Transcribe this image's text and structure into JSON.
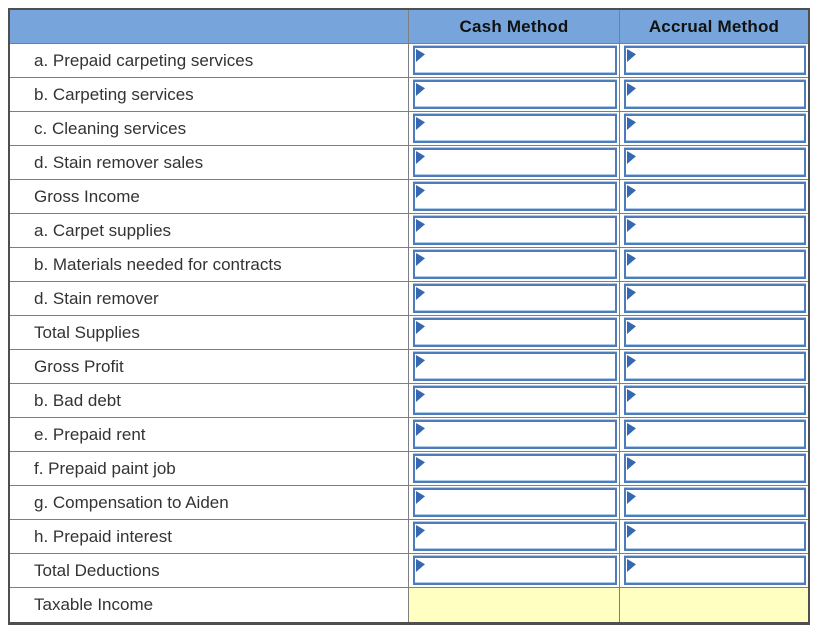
{
  "theme": {
    "header-bg": "#77A5DB",
    "header-text": "#111111",
    "label-text": "#333333",
    "grid-line": "#7f7f7f",
    "outer-border": "#4f4f4f",
    "input-border": "#4E7CBB",
    "input-glow": "#AECBEA",
    "flag-color": "#3568B1",
    "highlight-bg": "#FFFFC2"
  },
  "table": {
    "header": {
      "label_col": "",
      "cash": "Cash Method",
      "accrual": "Accrual Method"
    },
    "rows": [
      {
        "label": "a. Prepaid carpeting services",
        "type": "input",
        "cash_value": "",
        "accrual_value": ""
      },
      {
        "label": "b. Carpeting services",
        "type": "input",
        "cash_value": "",
        "accrual_value": ""
      },
      {
        "label": "c. Cleaning services",
        "type": "input",
        "cash_value": "",
        "accrual_value": ""
      },
      {
        "label": "d. Stain remover sales",
        "type": "input",
        "cash_value": "",
        "accrual_value": ""
      },
      {
        "label": "Gross Income",
        "type": "input",
        "cash_value": "",
        "accrual_value": ""
      },
      {
        "label": "a. Carpet supplies",
        "type": "input",
        "cash_value": "",
        "accrual_value": ""
      },
      {
        "label": "b. Materials needed for contracts",
        "type": "input",
        "cash_value": "",
        "accrual_value": ""
      },
      {
        "label": "d. Stain remover",
        "type": "input",
        "cash_value": "",
        "accrual_value": ""
      },
      {
        "label": "Total Supplies",
        "type": "input",
        "cash_value": "",
        "accrual_value": ""
      },
      {
        "label": "Gross Profit",
        "type": "input",
        "cash_value": "",
        "accrual_value": ""
      },
      {
        "label": "b. Bad debt",
        "type": "input",
        "cash_value": "",
        "accrual_value": ""
      },
      {
        "label": "e. Prepaid rent",
        "type": "input",
        "cash_value": "",
        "accrual_value": ""
      },
      {
        "label": "f. Prepaid paint job",
        "type": "input",
        "cash_value": "",
        "accrual_value": ""
      },
      {
        "label": "g. Compensation to Aiden",
        "type": "input",
        "cash_value": "",
        "accrual_value": ""
      },
      {
        "label": "h. Prepaid interest",
        "type": "input",
        "cash_value": "",
        "accrual_value": ""
      },
      {
        "label": "Total Deductions",
        "type": "input",
        "cash_value": "",
        "accrual_value": ""
      },
      {
        "label": "Taxable Income",
        "type": "highlight",
        "cash_value": "",
        "accrual_value": ""
      }
    ]
  }
}
